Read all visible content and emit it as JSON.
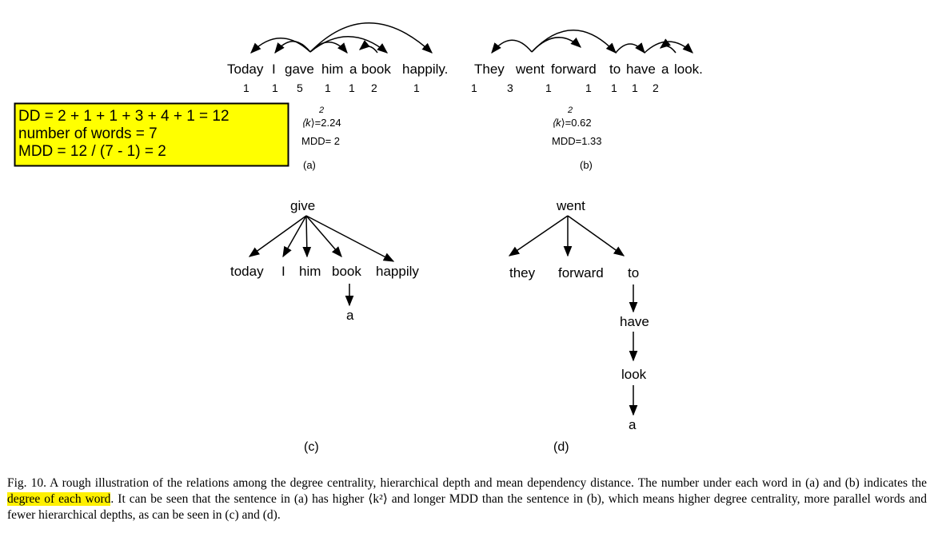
{
  "panel_a": {
    "words": [
      "Today",
      "I",
      "gave",
      "him",
      "a",
      "book",
      "happily."
    ],
    "degrees": [
      "1",
      "1",
      "5",
      "1",
      "1",
      "2",
      "1"
    ],
    "k2_prefix": "⟨k",
    "k2_exp": "2",
    "k2_value": "⟩=2.24",
    "mdd": "MDD= 2",
    "label": "(a)"
  },
  "panel_b": {
    "words": [
      "They",
      "went",
      "forward",
      "to",
      "have",
      "a",
      "look."
    ],
    "degrees": [
      "1",
      "3",
      "1",
      "1",
      "1",
      "1",
      "2"
    ],
    "k2_prefix": "⟨k",
    "k2_exp": "2",
    "k2_value": "⟩=0.62",
    "mdd": "MDD=1.33",
    "label": "(b)"
  },
  "box": {
    "line1": "DD = 2 + 1 + 1 + 3 + 4 + 1 = 12",
    "line2": "number of words = 7",
    "line3": "MDD = 12 / (7 - 1) = 2",
    "color": "#ffff00"
  },
  "panel_c": {
    "root": "give",
    "children": [
      "today",
      "I",
      "him",
      "book",
      "happily"
    ],
    "grandchild": "a",
    "label": "(c)"
  },
  "panel_d": {
    "root": "went",
    "children": [
      "they",
      "forward",
      "to"
    ],
    "chain": [
      "have",
      "look",
      "a"
    ],
    "label": "(d)"
  },
  "caption": {
    "part1": "Fig. 10. A rough illustration of the relations among the degree centrality, hierarchical depth and mean dependency distance. The number under each word in (a) and (b) indicates the ",
    "highlight": "degree of each word",
    "part2": ". It can be seen that the sentence in (a) has higher ⟨k²⟩ and longer MDD than the sentence in (b), which means higher degree centrality, more parallel words and fewer hierarchical depths, as can be seen in (c) and (d).",
    "highlight_color": "#fff000"
  }
}
